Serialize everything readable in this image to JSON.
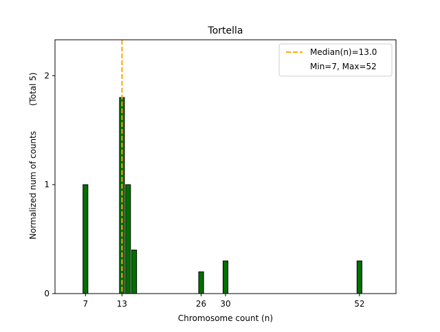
{
  "chart_data": {
    "type": "bar",
    "title": "Tortella",
    "xlabel": "Chromosome count (n)",
    "ylabel": "Normalized num of counts",
    "ylabel_note": "(Total 5)",
    "bars": [
      {
        "x": 7,
        "value": 1.0
      },
      {
        "x": 13,
        "value": 1.8
      },
      {
        "x": 14,
        "value": 1.0
      },
      {
        "x": 15,
        "value": 0.4
      },
      {
        "x": 26,
        "value": 0.2
      },
      {
        "x": 30,
        "value": 0.3
      },
      {
        "x": 52,
        "value": 0.3
      }
    ],
    "xticks": [
      7,
      13,
      26,
      30,
      52
    ],
    "yticks": [
      0,
      1,
      2
    ],
    "xlim": [
      2,
      58
    ],
    "ylim": [
      0,
      2.33
    ],
    "median": 13.0,
    "legend": {
      "position": "upper right",
      "median_label": "Median(n)=13.0",
      "range_label": "Min=7, Max=52"
    },
    "grid": false,
    "colors": {
      "bar_fill": "#007000",
      "bar_edge": "#000000",
      "median_line": "#FFA500"
    }
  }
}
